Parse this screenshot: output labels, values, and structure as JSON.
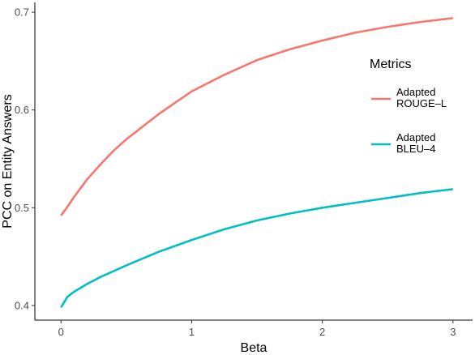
{
  "chart_data": {
    "type": "line",
    "xlabel": "Beta",
    "ylabel": "PCC on Entity Answers",
    "xlim": [
      -0.2,
      3.15
    ],
    "ylim": [
      0.385,
      0.71
    ],
    "x_ticks": [
      0,
      1,
      2,
      3
    ],
    "x_tick_labels": [
      "0",
      "1",
      "2",
      "3"
    ],
    "y_ticks": [
      0.4,
      0.5,
      0.6,
      0.7
    ],
    "y_tick_labels": [
      "0.4",
      "0.5",
      "0.6",
      "0.7"
    ],
    "grid": false,
    "legend": {
      "title": "Metrics",
      "placement": "right"
    },
    "series": [
      {
        "name_lines": [
          "Adapted",
          "ROUGE–L"
        ],
        "color": "#F8766D",
        "x": [
          0,
          0.05,
          0.1,
          0.2,
          0.3,
          0.4,
          0.5,
          0.75,
          1.0,
          1.25,
          1.5,
          1.75,
          2.0,
          2.25,
          2.5,
          2.75,
          3.0
        ],
        "y": [
          0.492,
          0.501,
          0.511,
          0.529,
          0.544,
          0.558,
          0.57,
          0.596,
          0.619,
          0.636,
          0.651,
          0.662,
          0.671,
          0.679,
          0.685,
          0.69,
          0.694
        ]
      },
      {
        "name_lines": [
          "Adapted",
          "BLEU–4"
        ],
        "color": "#00BFC4",
        "x": [
          0,
          0.05,
          0.1,
          0.2,
          0.3,
          0.4,
          0.5,
          0.75,
          1.0,
          1.25,
          1.5,
          1.75,
          2.0,
          2.25,
          2.5,
          2.75,
          3.0
        ],
        "y": [
          0.398,
          0.409,
          0.414,
          0.422,
          0.429,
          0.435,
          0.441,
          0.455,
          0.467,
          0.478,
          0.487,
          0.494,
          0.5,
          0.505,
          0.51,
          0.515,
          0.519
        ]
      }
    ]
  }
}
